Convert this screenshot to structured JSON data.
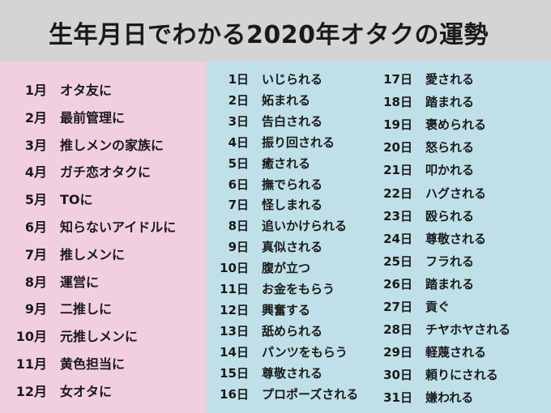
{
  "title": "生年月日でわかる2020年オタクの運勢",
  "months": [
    {
      "num": "1月",
      "text": "オタ友に"
    },
    {
      "num": "2月",
      "text": "最前管理に"
    },
    {
      "num": "3月",
      "text": "推しメンの家族に"
    },
    {
      "num": "4月",
      "text": "ガチ恋オタクに"
    },
    {
      "num": "5月",
      "text": "TOに"
    },
    {
      "num": "6月",
      "text": "知らないアイドルに"
    },
    {
      "num": "7月",
      "text": "推しメンに"
    },
    {
      "num": "8月",
      "text": "運営に"
    },
    {
      "num": "9月",
      "text": "二推しに"
    },
    {
      "num": "10月",
      "text": "元推しメンに"
    },
    {
      "num": "11月",
      "text": "黄色担当に"
    },
    {
      "num": "12月",
      "text": "女オタに"
    }
  ],
  "days": [
    {
      "num": "1日",
      "text": "いじられる"
    },
    {
      "num": "2日",
      "text": "妬まれる"
    },
    {
      "num": "3日",
      "text": "告白される"
    },
    {
      "num": "4日",
      "text": "振り回される"
    },
    {
      "num": "5日",
      "text": "癒される"
    },
    {
      "num": "6日",
      "text": "撫でられる"
    },
    {
      "num": "7日",
      "text": "怪しまれる"
    },
    {
      "num": "8日",
      "text": "追いかけられる"
    },
    {
      "num": "9日",
      "text": "真似される"
    },
    {
      "num": "10日",
      "text": "腹が立つ"
    },
    {
      "num": "11日",
      "text": "お金をもらう"
    },
    {
      "num": "12日",
      "text": "興奮する"
    },
    {
      "num": "13日",
      "text": "舐められる"
    },
    {
      "num": "14日",
      "text": "パンツをもらう"
    },
    {
      "num": "15日",
      "text": "尊敬される"
    },
    {
      "num": "16日",
      "text": "プロポーズされる"
    },
    {
      "num": "17日",
      "text": "愛される"
    },
    {
      "num": "18日",
      "text": "踏まれる"
    },
    {
      "num": "19日",
      "text": "褒められる"
    },
    {
      "num": "20日",
      "text": "怒られる"
    },
    {
      "num": "21日",
      "text": "叩かれる"
    },
    {
      "num": "22日",
      "text": "ハグされる"
    },
    {
      "num": "23日",
      "text": "殴られる"
    },
    {
      "num": "24日",
      "text": "尊敬される"
    },
    {
      "num": "25日",
      "text": "フラれる"
    },
    {
      "num": "26日",
      "text": "踏まれる"
    },
    {
      "num": "27日",
      "text": "貢ぐ"
    },
    {
      "num": "28日",
      "text": "チヤホヤされる"
    },
    {
      "num": "29日",
      "text": "軽蔑される"
    },
    {
      "num": "30日",
      "text": "頼りにされる"
    },
    {
      "num": "31日",
      "text": "嫌われる"
    }
  ],
  "colors": {
    "title_bg": "#d4d4d4",
    "months_bg": "#f2cfe0",
    "days_bg": "#bfe0e8"
  }
}
